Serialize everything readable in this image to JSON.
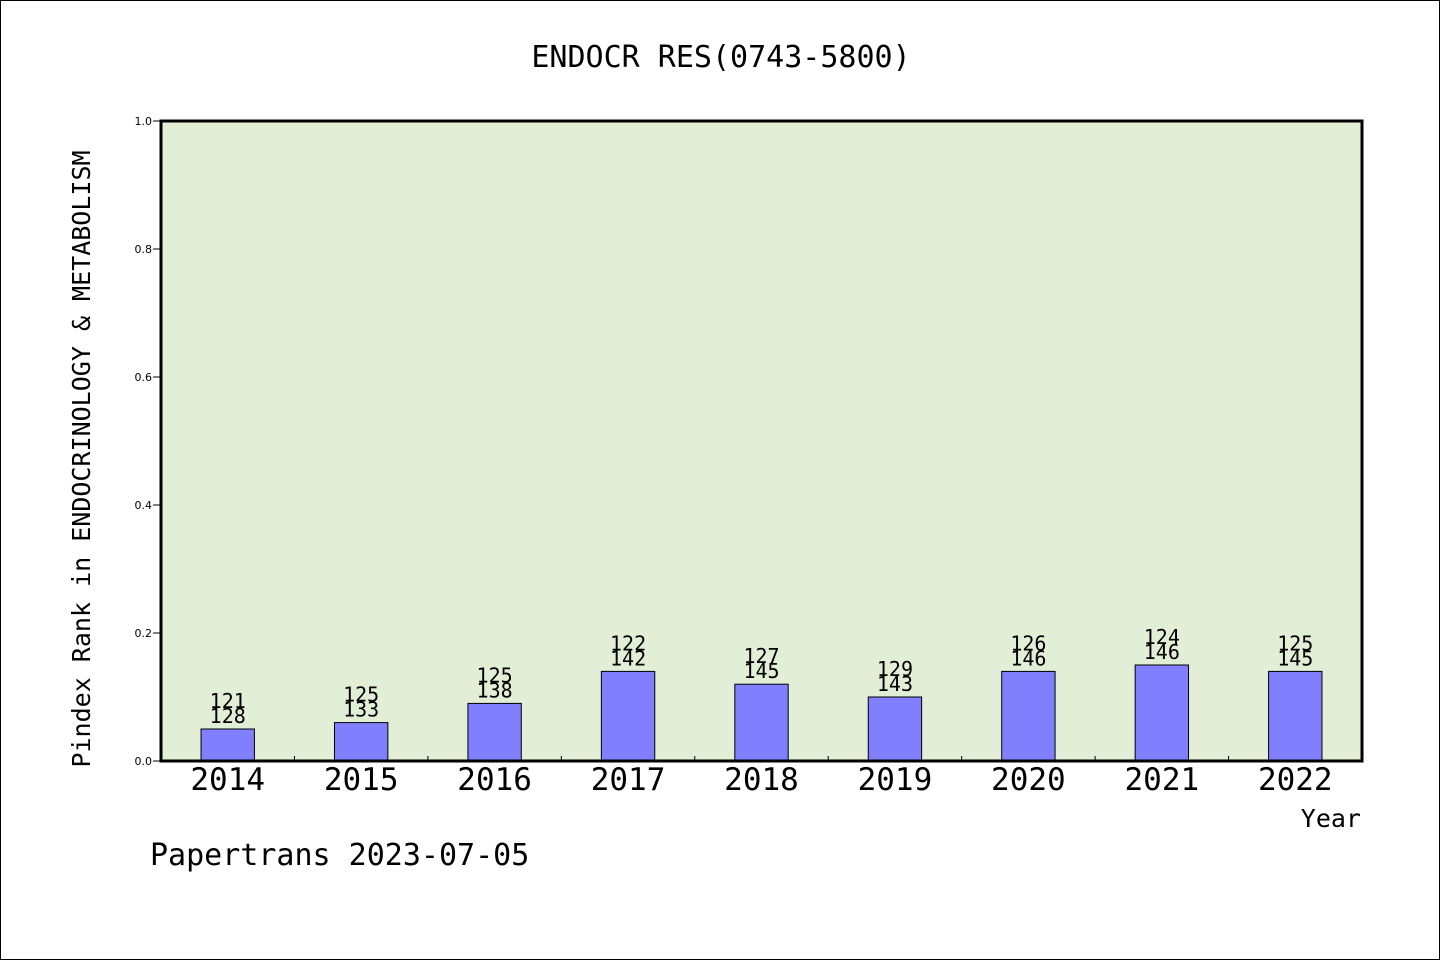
{
  "colors": {
    "plot_background": "#e2efd6",
    "bar_fill": "#8080ff",
    "bar_stroke": "#000000",
    "axis": "#000000",
    "text": "#000000"
  },
  "chart_data": {
    "type": "bar",
    "title": "ENDOCR RES(0743-5800)",
    "xlabel": "Year",
    "ylabel": "Pindex Rank in ENDOCRINOLOGY & METABOLISM",
    "categories": [
      "2014",
      "2015",
      "2016",
      "2017",
      "2018",
      "2019",
      "2020",
      "2021",
      "2022"
    ],
    "values": [
      0.05,
      0.06,
      0.09,
      0.14,
      0.12,
      0.1,
      0.14,
      0.15,
      0.14
    ],
    "label_rank": [
      "121",
      "125",
      "125",
      "122",
      "127",
      "129",
      "126",
      "124",
      "125"
    ],
    "label_total": [
      "128",
      "133",
      "138",
      "142",
      "145",
      "143",
      "146",
      "146",
      "145"
    ],
    "ylim": [
      0,
      1.0
    ],
    "yticks": [
      "0.0",
      "0.2",
      "0.4",
      "0.6",
      "0.8",
      "1.0"
    ],
    "grid": false,
    "legend": "none"
  },
  "footer": {
    "credit": "Papertrans 2023-07-05"
  }
}
